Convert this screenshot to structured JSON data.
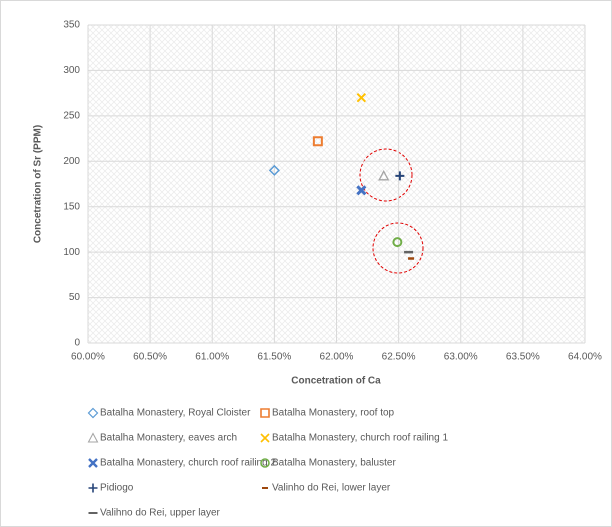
{
  "chart_data": {
    "type": "scatter",
    "xlabel": "Concetration of Ca",
    "ylabel": "Concetration of Sr (PPM)",
    "xlim": [
      60,
      64
    ],
    "xticks": [
      {
        "value": 60,
        "label": "60.00%"
      },
      {
        "value": 60.5,
        "label": "60.50%"
      },
      {
        "value": 61,
        "label": "61.00%"
      },
      {
        "value": 61.5,
        "label": "61.50%"
      },
      {
        "value": 62,
        "label": "62.00%"
      },
      {
        "value": 62.5,
        "label": "62.50%"
      },
      {
        "value": 63,
        "label": "63.00%"
      },
      {
        "value": 63.5,
        "label": "63.50%"
      },
      {
        "value": 64,
        "label": "64.00%"
      }
    ],
    "ylim": [
      0,
      350
    ],
    "yticks": [
      0,
      50,
      100,
      150,
      200,
      250,
      300,
      350
    ],
    "grid": true,
    "legend": "bottom",
    "series": [
      {
        "name": "Batalha Monastery, Royal Cloister",
        "color": "#5b9bd5",
        "marker": "diamond",
        "x": [
          61.5
        ],
        "values": [
          190
        ]
      },
      {
        "name": "Batalha Monastery, roof top",
        "color": "#ed7d31",
        "marker": "square",
        "x": [
          61.85
        ],
        "values": [
          222
        ]
      },
      {
        "name": "Batalha Monastery, eaves arch",
        "color": "#a5a5a5",
        "marker": "triangle",
        "x": [
          62.38
        ],
        "values": [
          184
        ]
      },
      {
        "name": "Batalha Monastery, church roof railing 1",
        "color": "#ffc000",
        "marker": "x",
        "x": [
          62.2
        ],
        "values": [
          270
        ]
      },
      {
        "name": "Batalha Monastery, church roof railing 2",
        "color": "#4472c4",
        "marker": "bold-x",
        "x": [
          62.2
        ],
        "values": [
          168
        ]
      },
      {
        "name": "Batalha Monastery, baluster",
        "color": "#70ad47",
        "marker": "circle",
        "x": [
          62.49
        ],
        "values": [
          111
        ]
      },
      {
        "name": "Pidiogo",
        "color": "#264478",
        "marker": "plus",
        "x": [
          62.51
        ],
        "values": [
          184
        ]
      },
      {
        "name": "Valinho do Rei, lower layer",
        "color": "#9e480e",
        "marker": "short-dash",
        "x": [
          62.6
        ],
        "values": [
          93
        ]
      },
      {
        "name": "Valihno do Rei, upper layer",
        "color": "#636363",
        "marker": "dash",
        "x": [
          62.58
        ],
        "values": [
          100
        ]
      }
    ]
  }
}
